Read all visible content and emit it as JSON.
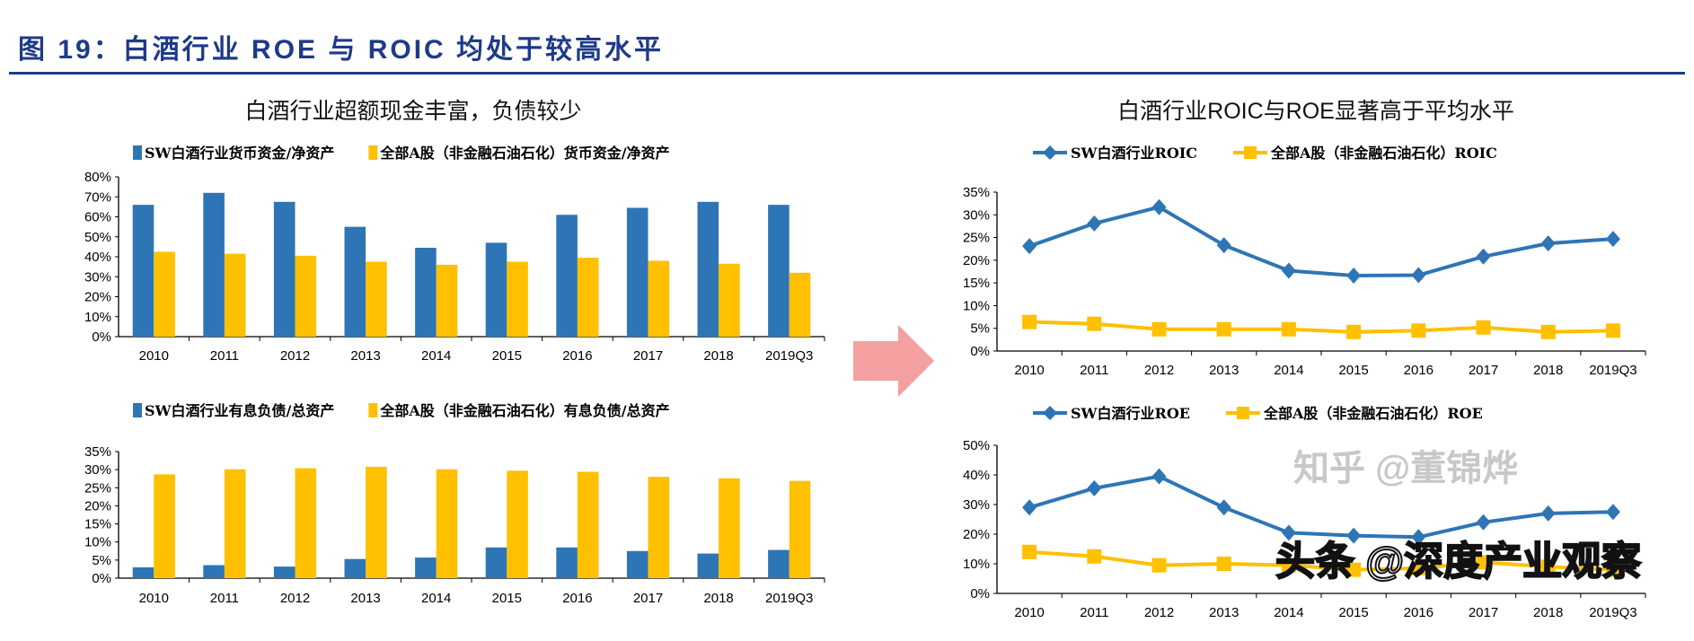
{
  "header": {
    "title": "图 19：白酒行业 ROE 与 ROIC 均处于较高水平"
  },
  "panels": {
    "left_title": "白酒行业超额现金丰富，负债较少",
    "right_title": "白酒行业ROIC与ROE显著高于平均水平"
  },
  "arrow_color": "#f4a0a0",
  "watermarks": [
    "知乎 @董锦烨",
    "头条 @深度产业观察"
  ],
  "chart_data": [
    {
      "type": "bar",
      "categories": [
        "2010",
        "2011",
        "2012",
        "2013",
        "2014",
        "2015",
        "2016",
        "2017",
        "2018",
        "2019Q3"
      ],
      "ylim": [
        0,
        80
      ],
      "yticks": [
        "0%",
        "10%",
        "20%",
        "30%",
        "40%",
        "50%",
        "60%",
        "70%",
        "80%"
      ],
      "legend": "top",
      "series": [
        {
          "name": "SW白酒行业货币资金/净资产",
          "color": "#2e75b6",
          "values": [
            66,
            72,
            67.5,
            55,
            44.5,
            47,
            61,
            64.5,
            67.5,
            66
          ]
        },
        {
          "name": "全部A股（非金融石油石化）货币资金/净资产",
          "color": "#ffc000",
          "values": [
            42.5,
            41.5,
            40.5,
            37.5,
            36,
            37.5,
            39.5,
            38,
            36.5,
            32
          ]
        }
      ]
    },
    {
      "type": "bar",
      "categories": [
        "2010",
        "2011",
        "2012",
        "2013",
        "2014",
        "2015",
        "2016",
        "2017",
        "2018",
        "2019Q3"
      ],
      "ylim": [
        0,
        35
      ],
      "yticks": [
        "0%",
        "5%",
        "10%",
        "15%",
        "20%",
        "25%",
        "30%",
        "35%"
      ],
      "legend": "top",
      "series": [
        {
          "name": "SW白酒行业有息负债/总资产",
          "color": "#2e75b6",
          "values": [
            3.0,
            3.6,
            3.2,
            5.3,
            5.7,
            8.5,
            8.5,
            7.5,
            6.8,
            7.8
          ]
        },
        {
          "name": "全部A股（非金融石油石化）有息负债/总资产",
          "color": "#ffc000",
          "values": [
            28.7,
            30.1,
            30.4,
            30.8,
            30.1,
            29.7,
            29.4,
            28.0,
            27.6,
            26.9
          ]
        }
      ]
    },
    {
      "type": "line",
      "categories": [
        "2010",
        "2011",
        "2012",
        "2013",
        "2014",
        "2015",
        "2016",
        "2017",
        "2018",
        "2019Q3"
      ],
      "ylim": [
        0,
        35
      ],
      "yticks": [
        "0%",
        "5%",
        "10%",
        "15%",
        "20%",
        "25%",
        "30%",
        "35%"
      ],
      "legend": "top",
      "series": [
        {
          "name": "SW白酒行业ROIC",
          "color": "#2e75b6",
          "marker": "diamond",
          "values": [
            23.1,
            28.1,
            31.7,
            23.3,
            17.7,
            16.6,
            16.7,
            20.8,
            23.7,
            24.7
          ]
        },
        {
          "name": "全部A股（非金融石油石化）ROIC",
          "color": "#ffc000",
          "marker": "square",
          "values": [
            6.4,
            6.0,
            4.8,
            4.8,
            4.8,
            4.2,
            4.5,
            5.2,
            4.2,
            4.5
          ]
        }
      ]
    },
    {
      "type": "line",
      "categories": [
        "2010",
        "2011",
        "2012",
        "2013",
        "2014",
        "2015",
        "2016",
        "2017",
        "2018",
        "2019Q3"
      ],
      "ylim": [
        0,
        50
      ],
      "yticks": [
        "0%",
        "10%",
        "20%",
        "30%",
        "40%",
        "50%"
      ],
      "legend": "top",
      "series": [
        {
          "name": "SW白酒行业ROE",
          "color": "#2e75b6",
          "marker": "diamond",
          "values": [
            29,
            35.5,
            39.5,
            29,
            20.5,
            19.5,
            19,
            24,
            27,
            27.5
          ]
        },
        {
          "name": "全部A股（非金融石油石化）ROE",
          "color": "#ffc000",
          "marker": "square",
          "values": [
            14,
            12.5,
            9.5,
            10,
            9.5,
            8,
            8.5,
            10.5,
            9,
            8
          ]
        }
      ]
    }
  ]
}
